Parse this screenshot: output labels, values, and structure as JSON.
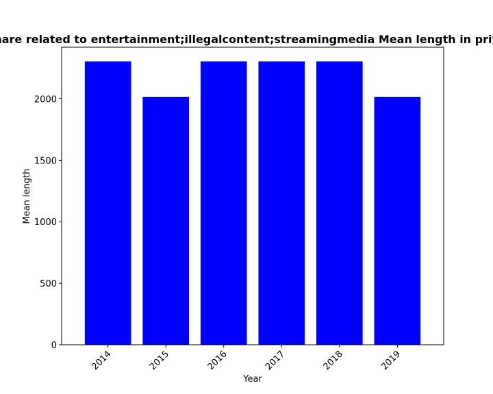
{
  "chart_data": {
    "type": "bar",
    "title": "Share related to entertainment;illegalcontent;streamingmedia Mean length in private",
    "xlabel": "Year",
    "ylabel": "Mean length",
    "categories": [
      "2014",
      "2015",
      "2016",
      "2017",
      "2018",
      "2019"
    ],
    "values": [
      2305,
      2015,
      2305,
      2305,
      2305,
      2015
    ],
    "ylim": [
      0,
      2420
    ],
    "yticks": [
      0,
      500,
      1000,
      1500,
      2000
    ],
    "grid": false,
    "bar_color": "#0000ff"
  }
}
